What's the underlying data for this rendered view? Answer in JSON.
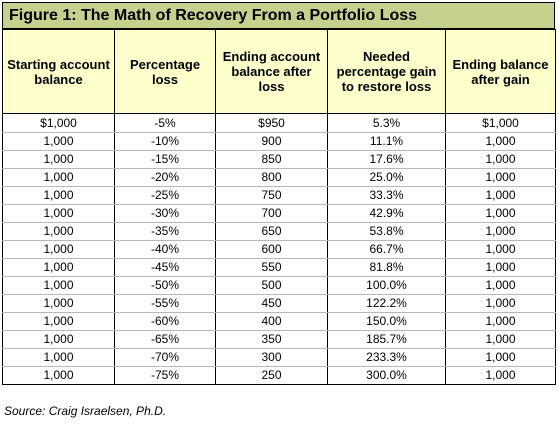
{
  "title": "Figure 1: The Math of Recovery From a Portfolio Loss",
  "colors": {
    "title_band": "#c7d08d",
    "header_background": "#ffffcc"
  },
  "table": {
    "headers": [
      "Starting account balance",
      "Percentage loss",
      "Ending account balance after loss",
      "Needed percentage gain to restore loss",
      "Ending balance after gain"
    ],
    "rows": [
      [
        "$1,000",
        "-5%",
        "$950",
        "5.3%",
        "$1,000"
      ],
      [
        "1,000",
        "-10%",
        "900",
        "11.1%",
        "1,000"
      ],
      [
        "1,000",
        "-15%",
        "850",
        "17.6%",
        "1,000"
      ],
      [
        "1,000",
        "-20%",
        "800",
        "25.0%",
        "1,000"
      ],
      [
        "1,000",
        "-25%",
        "750",
        "33.3%",
        "1,000"
      ],
      [
        "1,000",
        "-30%",
        "700",
        "42.9%",
        "1,000"
      ],
      [
        "1,000",
        "-35%",
        "650",
        "53.8%",
        "1,000"
      ],
      [
        "1,000",
        "-40%",
        "600",
        "66.7%",
        "1,000"
      ],
      [
        "1,000",
        "-45%",
        "550",
        "81.8%",
        "1,000"
      ],
      [
        "1,000",
        "-50%",
        "500",
        "100.0%",
        "1,000"
      ],
      [
        "1,000",
        "-55%",
        "450",
        "122.2%",
        "1,000"
      ],
      [
        "1,000",
        "-60%",
        "400",
        "150.0%",
        "1,000"
      ],
      [
        "1,000",
        "-65%",
        "350",
        "185.7%",
        "1,000"
      ],
      [
        "1,000",
        "-70%",
        "300",
        "233.3%",
        "1,000"
      ],
      [
        "1,000",
        "-75%",
        "250",
        "300.0%",
        "1,000"
      ]
    ]
  },
  "source": "Source: Craig Israelsen, Ph.D."
}
